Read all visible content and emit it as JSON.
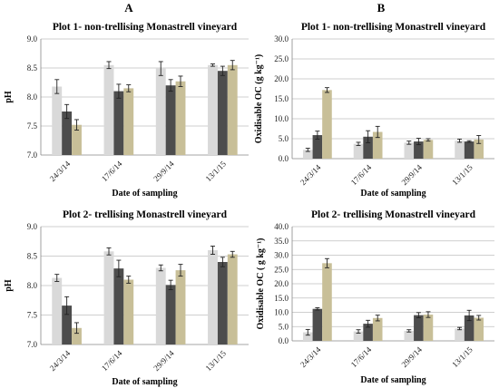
{
  "figure": {
    "panel_labels": [
      "A",
      "B"
    ],
    "colors": [
      "#d9d9d9",
      "#4d4d4d",
      "#c8bf98"
    ],
    "error_bar_color": "#222222",
    "grid_color": "#bfbfbf"
  },
  "chart_data": [
    {
      "type": "bar",
      "title": "Plot 1- non-trellising Monastrell vineyard",
      "xlabel": "Date of sampling",
      "ylabel": "pH",
      "categories": [
        "24/3/14",
        "17/6/14",
        "29/9/14",
        "13/1/15"
      ],
      "ylim": [
        7.0,
        9.0
      ],
      "yticks": [
        "7.0",
        "7.5",
        "8.0",
        "8.5",
        "9.0"
      ],
      "grid": true,
      "series": [
        {
          "values": [
            8.18,
            8.55,
            8.49,
            8.55
          ],
          "errors": [
            0.12,
            0.06,
            0.12,
            0.02
          ]
        },
        {
          "values": [
            7.75,
            8.1,
            8.2,
            8.45
          ],
          "errors": [
            0.12,
            0.12,
            0.1,
            0.08
          ]
        },
        {
          "values": [
            7.52,
            8.15,
            8.27,
            8.55
          ],
          "errors": [
            0.09,
            0.06,
            0.09,
            0.08
          ]
        }
      ]
    },
    {
      "type": "bar",
      "title": "Plot 1- non-trellising Monastrell vineyard",
      "xlabel": "Date of sampling",
      "ylabel": "Oxidisable OC (g kg⁻¹)",
      "categories": [
        "24/3/14",
        "17/6/14",
        "29/9/14",
        "13/1/15"
      ],
      "ylim": [
        0,
        30
      ],
      "yticks": [
        "0.0",
        "5.0",
        "10.0",
        "15.0",
        "20.0",
        "25.0",
        "30.0"
      ],
      "grid": true,
      "series": [
        {
          "values": [
            2.2,
            3.7,
            4.0,
            4.5
          ],
          "errors": [
            0.4,
            0.4,
            0.4,
            0.4
          ]
        },
        {
          "values": [
            5.9,
            5.5,
            4.3,
            4.3
          ],
          "errors": [
            1.0,
            1.5,
            0.8,
            0.2
          ]
        },
        {
          "values": [
            17.2,
            6.7,
            4.7,
            4.8
          ],
          "errors": [
            0.6,
            1.4,
            0.3,
            1.0
          ]
        }
      ]
    },
    {
      "type": "bar",
      "title": "Plot 2- trellising Monastrell vineyard",
      "xlabel": "Date of sampling",
      "ylabel": "pH",
      "categories": [
        "24/3/14",
        "17/6/14",
        "29/9/14",
        "13/1/15"
      ],
      "ylim": [
        7.0,
        9.0
      ],
      "yticks": [
        "7.0",
        "7.5",
        "8.0",
        "8.5",
        "9.0"
      ],
      "grid": true,
      "series": [
        {
          "values": [
            8.13,
            8.58,
            8.3,
            8.6
          ],
          "errors": [
            0.06,
            0.06,
            0.05,
            0.07
          ]
        },
        {
          "values": [
            7.66,
            8.29,
            8.01,
            8.4
          ],
          "errors": [
            0.15,
            0.14,
            0.08,
            0.08
          ]
        },
        {
          "values": [
            7.28,
            8.1,
            8.26,
            8.53
          ],
          "errors": [
            0.09,
            0.06,
            0.1,
            0.05
          ]
        }
      ]
    },
    {
      "type": "bar",
      "title": "Plot 2- trellising Monastrell vineyard",
      "xlabel": "Date of sampling",
      "ylabel": "Oxidisable OC ( g kg⁻¹)",
      "categories": [
        "24/3/14",
        "17/6/14",
        "29/9/14",
        "13/1/15"
      ],
      "ylim": [
        0,
        40
      ],
      "yticks": [
        "0.0",
        "5.0",
        "10.0",
        "15.0",
        "20.0",
        "25.0",
        "30.0",
        "35.0",
        "40.0"
      ],
      "grid": true,
      "series": [
        {
          "values": [
            3.0,
            3.3,
            3.5,
            4.3
          ],
          "errors": [
            1.0,
            0.6,
            0.4,
            0.4
          ]
        },
        {
          "values": [
            11.2,
            6.0,
            9.0,
            8.9
          ],
          "errors": [
            0.4,
            1.2,
            0.9,
            1.8
          ]
        },
        {
          "values": [
            27.2,
            8.0,
            9.2,
            8.1
          ],
          "errors": [
            1.6,
            1.0,
            1.0,
            0.8
          ]
        }
      ]
    }
  ]
}
